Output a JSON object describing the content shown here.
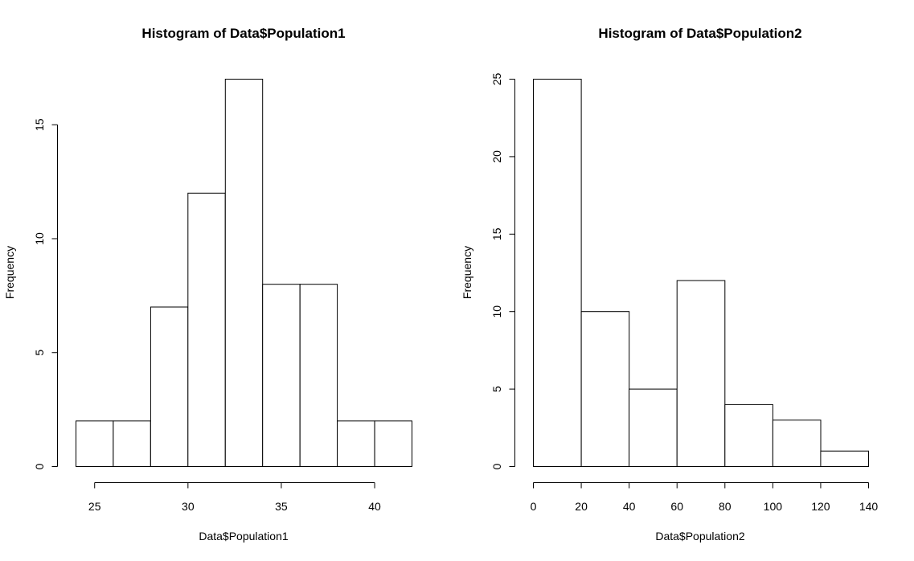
{
  "chart_data": [
    {
      "type": "bar",
      "title": "Histogram of Data$Population1",
      "xlabel": "Data$Population1",
      "ylabel": "Frequency",
      "bins": [
        [
          24,
          26
        ],
        [
          26,
          28
        ],
        [
          28,
          30
        ],
        [
          30,
          32
        ],
        [
          32,
          34
        ],
        [
          34,
          36
        ],
        [
          36,
          38
        ],
        [
          38,
          40
        ],
        [
          40,
          42
        ]
      ],
      "values": [
        2,
        2,
        7,
        12,
        17,
        8,
        8,
        2,
        2
      ],
      "x_ticks": [
        25,
        30,
        35,
        40
      ],
      "y_ticks": [
        0,
        5,
        10,
        15
      ],
      "xlim": [
        24,
        42
      ],
      "ylim": [
        0,
        17
      ],
      "grid": false,
      "bar_fill": "#ffffff",
      "bar_stroke": "#000000"
    },
    {
      "type": "bar",
      "title": "Histogram of Data$Population2",
      "xlabel": "Data$Population2",
      "ylabel": "Frequency",
      "bins": [
        [
          0,
          20
        ],
        [
          20,
          40
        ],
        [
          40,
          60
        ],
        [
          60,
          80
        ],
        [
          80,
          100
        ],
        [
          100,
          120
        ],
        [
          120,
          140
        ]
      ],
      "values": [
        25,
        10,
        5,
        12,
        4,
        3,
        1
      ],
      "x_ticks": [
        0,
        20,
        40,
        60,
        80,
        100,
        120,
        140
      ],
      "y_ticks": [
        0,
        5,
        10,
        15,
        20,
        25
      ],
      "xlim": [
        0,
        140
      ],
      "ylim": [
        0,
        25
      ],
      "grid": false,
      "bar_fill": "#ffffff",
      "bar_stroke": "#000000"
    }
  ]
}
